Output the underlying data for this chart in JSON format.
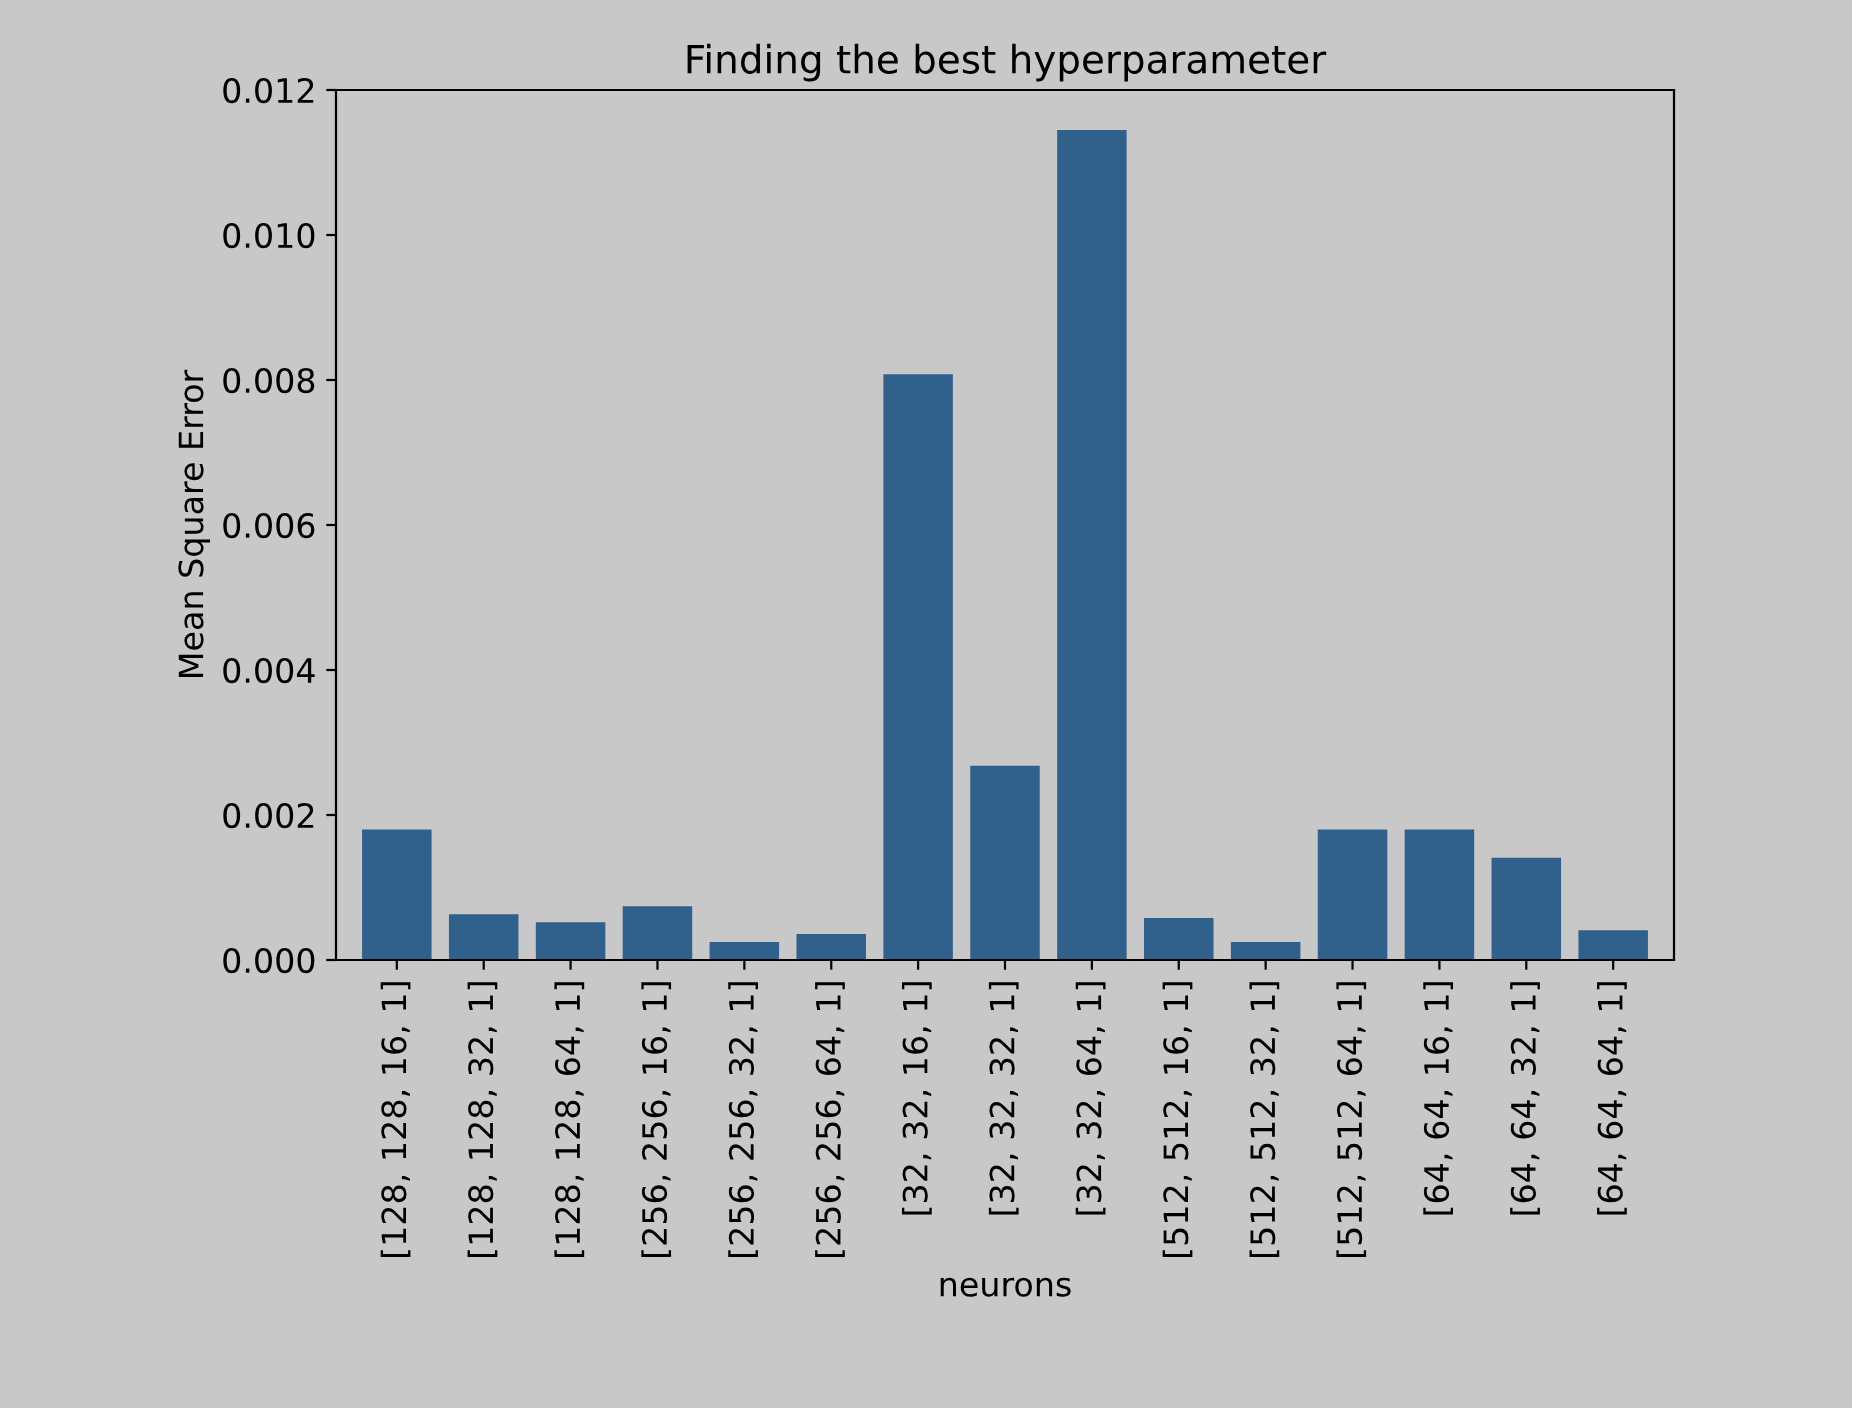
{
  "chart_data": {
    "type": "bar",
    "title": "Finding the best hyperparameter",
    "xlabel": "neurons",
    "ylabel": "Mean Square Error",
    "categories": [
      "[128, 128, 16, 1]",
      "[128, 128, 32, 1]",
      "[128, 128, 64, 1]",
      "[256, 256, 16, 1]",
      "[256, 256, 32, 1]",
      "[256, 256, 64, 1]",
      "[32, 32, 16, 1]",
      "[32, 32, 32, 1]",
      "[32, 32, 64, 1]",
      "[512, 512, 16, 1]",
      "[512, 512, 32, 1]",
      "[512, 512, 64, 1]",
      "[64, 64, 16, 1]",
      "[64, 64, 32, 1]",
      "[64, 64, 64, 1]"
    ],
    "values": [
      0.0018,
      0.00063,
      0.00052,
      0.00074,
      0.00025,
      0.00036,
      0.00808,
      0.00268,
      0.01145,
      0.00058,
      0.00025,
      0.0018,
      0.0018,
      0.00141,
      0.00041
    ],
    "color": "#30608c",
    "ylim": [
      0,
      0.012
    ],
    "yticks": [
      {
        "value": 0,
        "label": "0.000"
      },
      {
        "value": 0.002,
        "label": "0.002"
      },
      {
        "value": 0.004,
        "label": "0.004"
      },
      {
        "value": 0.006,
        "label": "0.006"
      },
      {
        "value": 0.008,
        "label": "0.008"
      },
      {
        "value": 0.01,
        "label": "0.010"
      },
      {
        "value": 0.012,
        "label": "0.012"
      }
    ],
    "grid": false,
    "legend": false
  }
}
